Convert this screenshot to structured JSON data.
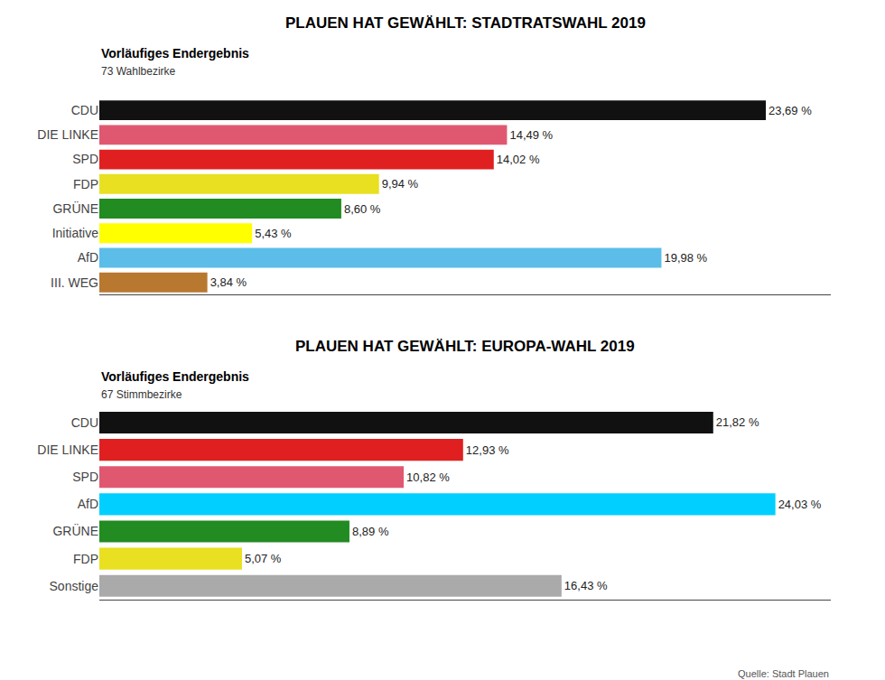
{
  "chart_data": [
    {
      "type": "bar",
      "orientation": "horizontal",
      "title": "PLAUEN HAT GEWÄHLT: STADTRATSWAHL 2019",
      "subtitle": "Vorläufiges Endergebnis",
      "annotations": [
        "73 Wahlbezirke"
      ],
      "categories": [
        "CDU",
        "DIE LINKE",
        "SPD",
        "FDP",
        "GRÜNE",
        "Initiative",
        "AfD",
        "III. WEG"
      ],
      "values": [
        23.69,
        14.49,
        14.02,
        9.94,
        8.6,
        5.43,
        19.98,
        3.84
      ],
      "value_labels": [
        "23,69 %",
        "14,49 %",
        "14,02 %",
        "9,94 %",
        "8,60 %",
        "5,43 %",
        "19,98 %",
        "3,84 %"
      ],
      "colors": [
        "#111111",
        "#e05870",
        "#e02020",
        "#e8e020",
        "#228B22",
        "#ffff00",
        "#5bbde8",
        "#b87830"
      ],
      "data_labels": true,
      "xlim": [
        0,
        26
      ],
      "tick_labels": "y",
      "grid": false
    },
    {
      "type": "bar",
      "orientation": "horizontal",
      "title": "PLAUEN HAT GEWÄHLT: EUROPA-WAHL 2019",
      "subtitle": "Vorläufiges Endergebnis",
      "annotations": [
        "67 Stimmbezirke",
        "Quelle: Stadt Plauen"
      ],
      "categories": [
        "CDU",
        "DIE LINKE",
        "SPD",
        "AfD",
        "GRÜNE",
        "FDP",
        "Sonstige"
      ],
      "values": [
        21.82,
        12.93,
        10.82,
        24.03,
        8.89,
        5.07,
        16.43
      ],
      "value_labels": [
        "21,82 %",
        "12,93 %",
        "10,82 %",
        "24,03 %",
        "8,89 %",
        "5,07 %",
        "16,43 %"
      ],
      "colors": [
        "#111111",
        "#e02020",
        "#e05870",
        "#00cfff",
        "#228B22",
        "#e8e020",
        "#aaaaaa"
      ],
      "data_labels": true,
      "xlim": [
        0,
        26
      ],
      "tick_labels": "y",
      "grid": false
    }
  ]
}
